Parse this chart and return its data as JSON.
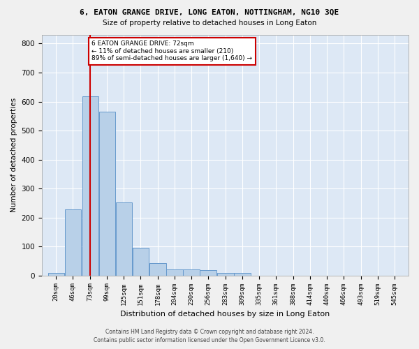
{
  "title": "6, EATON GRANGE DRIVE, LONG EATON, NOTTINGHAM, NG10 3QE",
  "subtitle": "Size of property relative to detached houses in Long Eaton",
  "xlabel": "Distribution of detached houses by size in Long Eaton",
  "ylabel": "Number of detached properties",
  "bar_values": [
    10,
    228,
    617,
    565,
    253,
    96,
    43,
    20,
    20,
    19,
    8,
    8,
    0,
    0,
    0,
    0,
    0,
    0,
    0,
    0
  ],
  "bar_labels": [
    "20sqm",
    "46sqm",
    "73sqm",
    "99sqm",
    "125sqm",
    "151sqm",
    "178sqm",
    "204sqm",
    "230sqm",
    "256sqm",
    "283sqm",
    "309sqm",
    "335sqm",
    "361sqm",
    "388sqm",
    "414sqm",
    "440sqm",
    "466sqm",
    "493sqm",
    "519sqm",
    "545sqm"
  ],
  "bar_color": "#b8d0e8",
  "bar_edge_color": "#6699cc",
  "background_color": "#dde8f5",
  "grid_color": "#ffffff",
  "annotation_box_text": "6 EATON GRANGE DRIVE: 72sqm\n← 11% of detached houses are smaller (210)\n89% of semi-detached houses are larger (1,640) →",
  "annotation_box_color": "#ffffff",
  "annotation_box_edge_color": "#cc0000",
  "vline_color": "#cc0000",
  "ylim": [
    0,
    830
  ],
  "yticks": [
    0,
    100,
    200,
    300,
    400,
    500,
    600,
    700,
    800
  ],
  "footer_line1": "Contains HM Land Registry data © Crown copyright and database right 2024.",
  "footer_line2": "Contains public sector information licensed under the Open Government Licence v3.0.",
  "fig_width": 6.0,
  "fig_height": 5.0,
  "fig_dpi": 100
}
